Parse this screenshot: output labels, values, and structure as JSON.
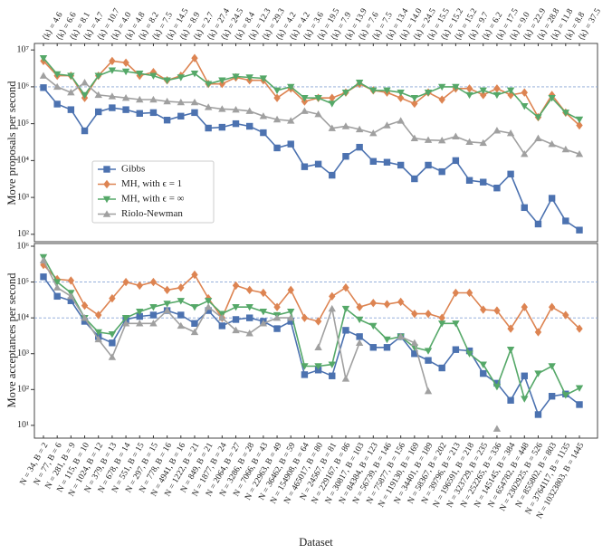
{
  "chart_data": [
    {
      "type": "line",
      "log_y": true,
      "ylabel": "Move proposals per second",
      "categories": [
        "⟨k⟩ = 4.6",
        "⟨k⟩ = 6.6",
        "⟨k⟩ = 8.1",
        "⟨k⟩ = 4.7",
        "⟨k⟩ = 10.7",
        "⟨k⟩ = 4.0",
        "⟨k⟩ = 4.8",
        "⟨k⟩ = 8.2",
        "⟨k⟩ = 7.5",
        "⟨k⟩ = 14.5",
        "⟨k⟩ = 8.9",
        "⟨k⟩ = 2.7",
        "⟨k⟩ = 27.4",
        "⟨k⟩ = 24.5",
        "⟨k⟩ = 8.4",
        "⟨k⟩ = 12.3",
        "⟨k⟩ = 29.3",
        "⟨k⟩ = 4.2",
        "⟨k⟩ = 4.2",
        "⟨k⟩ = 3.6",
        "⟨k⟩ = 19.5",
        "⟨k⟩ = 7.9",
        "⟨k⟩ = 13.9",
        "⟨k⟩ = 7.6",
        "⟨k⟩ = 7.5",
        "⟨k⟩ = 13.4",
        "⟨k⟩ = 14.0",
        "⟨k⟩ = 24.5",
        "⟨k⟩ = 15.5",
        "⟨k⟩ = 15.2",
        "⟨k⟩ = 15.2",
        "⟨k⟩ = 9.7",
        "⟨k⟩ = 6.2",
        "⟨k⟩ = 17.5",
        "⟨k⟩ = 9.0",
        "⟨k⟩ = 22.9",
        "⟨k⟩ = 28.8",
        "⟨k⟩ = 11.8",
        "⟨k⟩ = 8.8",
        "⟨k⟩ = 37.5"
      ],
      "ylim": [
        63,
        15000000
      ],
      "yticks": [
        {
          "value": 100,
          "label": "10²"
        },
        {
          "value": 1000,
          "label": "10³"
        },
        {
          "value": 10000,
          "label": "10⁴"
        },
        {
          "value": 100000,
          "label": "10⁵"
        },
        {
          "value": 1000000,
          "label": "10⁶"
        },
        {
          "value": 10000000,
          "label": "10⁷"
        }
      ],
      "hlines": [
        1000000
      ],
      "hline_color": "#8aa6d6",
      "legend": "center left",
      "series": [
        {
          "name": "Gibbs",
          "color": "#4c72b0",
          "marker": "square",
          "values": [
            950000,
            340000,
            240000,
            64000,
            210000,
            270000,
            240000,
            190000,
            200000,
            125000,
            160000,
            200000,
            76000,
            80000,
            100000,
            85000,
            57000,
            22000,
            28000,
            6800,
            8000,
            4000,
            13000,
            23000,
            9500,
            9000,
            7500,
            3200,
            7500,
            5000,
            10000,
            2900,
            2600,
            1800,
            4300,
            530,
            190,
            950,
            230,
            130
          ]
        },
        {
          "name": "MH, with ϵ = 1",
          "color": "#dd8452",
          "marker": "diamond",
          "values": [
            5000000,
            2000000,
            2000000,
            500000,
            2000000,
            5000000,
            4500000,
            2000000,
            2500000,
            1500000,
            2000000,
            6000000,
            1200000,
            1200000,
            1800000,
            1500000,
            1500000,
            500000,
            900000,
            400000,
            500000,
            500000,
            700000,
            1200000,
            800000,
            700000,
            500000,
            350000,
            700000,
            450000,
            900000,
            900000,
            600000,
            900000,
            600000,
            700000,
            150000,
            600000,
            200000,
            90000
          ]
        },
        {
          "name": "MH, with ϵ = ∞",
          "color": "#55a868",
          "marker": "triangle-down",
          "values": [
            6000000,
            2200000,
            2000000,
            600000,
            2000000,
            2800000,
            2600000,
            2300000,
            2000000,
            1500000,
            1800000,
            2300000,
            1200000,
            1500000,
            1900000,
            1800000,
            1700000,
            800000,
            1000000,
            500000,
            500000,
            350000,
            700000,
            1300000,
            800000,
            800000,
            700000,
            500000,
            700000,
            1000000,
            1000000,
            600000,
            800000,
            600000,
            800000,
            300000,
            150000,
            500000,
            200000,
            130000
          ]
        },
        {
          "name": "Riolo-Newman",
          "color": "#a0a0a0",
          "marker": "triangle-up",
          "values": [
            2000000,
            1000000,
            700000,
            1300000,
            600000,
            550000,
            500000,
            450000,
            450000,
            400000,
            380000,
            380000,
            280000,
            250000,
            240000,
            220000,
            160000,
            130000,
            120000,
            220000,
            180000,
            75000,
            85000,
            70000,
            55000,
            90000,
            120000,
            40000,
            36000,
            35000,
            45000,
            32000,
            30000,
            65000,
            55000,
            15000,
            40000,
            28000,
            20000,
            15000
          ]
        }
      ]
    },
    {
      "type": "line",
      "log_y": true,
      "ylabel": "Move acceptances per second",
      "xlabel": "Dataset",
      "categories": [
        "N = 34, B = 2",
        "N = 77, B = 6",
        "N = 281, B = 9",
        "N = 115, B = 10",
        "N = 1024, B = 12",
        "N = 379, B = 13",
        "N = 678, B = 14",
        "N = 551, B = 15",
        "N = 297, B = 15",
        "N = 778, B = 16",
        "N = 4941, B = 16",
        "N = 1222, B = 21",
        "N = 849, B = 21",
        "N = 1877, B = 24",
        "N = 2064, B = 27",
        "N = 3286, B = 28",
        "N = 7066, B = 43",
        "N = 22963, B = 49",
        "N = 36462, B = 59",
        "N = 154908, B = 64",
        "N = 465017, B = 80",
        "N = 24567, B = 81",
        "N = 229167, B = 86",
        "N = 30817, B = 103",
        "N = 84384, B = 123",
        "N = 56739, B = 146",
        "N = 75877, B = 156",
        "N = 119130, B = 169",
        "N = 34401, B = 189",
        "N = 58367, B = 202",
        "N = 39796, B = 213",
        "N = 196591, B = 218",
        "N = 323729, B = 235",
        "N = 252265, B = 336",
        "N = 145145, B = 384",
        "N = 654782, B = 448",
        "N = 2302925, B = 526",
        "N = 855802, B = 803",
        "N = 3764117, B = 1135",
        "N = 10323803, B = 1445"
      ],
      "ylim": [
        4.4,
        1190000
      ],
      "yticks": [
        {
          "value": 10,
          "label": "10¹"
        },
        {
          "value": 100,
          "label": "10²"
        },
        {
          "value": 1000,
          "label": "10³"
        },
        {
          "value": 10000,
          "label": "10⁴"
        },
        {
          "value": 100000,
          "label": "10⁵"
        },
        {
          "value": 1000000,
          "label": "10⁶"
        }
      ],
      "hlines": [
        100000,
        10000
      ],
      "hline_color": "#8aa6d6",
      "series": [
        {
          "color": "#4c72b0",
          "marker": "square",
          "values": [
            140000,
            40000,
            30000,
            8000,
            3000,
            2000,
            9000,
            11000,
            12000,
            16000,
            12000,
            7000,
            16000,
            6000,
            9000,
            10000,
            8000,
            5000,
            8000,
            260,
            350,
            240,
            4500,
            3000,
            1500,
            1500,
            3000,
            1000,
            650,
            400,
            1300,
            1200,
            280,
            150,
            50,
            240,
            20,
            65,
            75,
            38
          ]
        },
        {
          "color": "#dd8452",
          "marker": "diamond",
          "values": [
            300000,
            120000,
            110000,
            22000,
            12000,
            35000,
            100000,
            80000,
            100000,
            60000,
            70000,
            160000,
            35000,
            10000,
            80000,
            60000,
            50000,
            20000,
            60000,
            10000,
            8000,
            40000,
            70000,
            20000,
            26000,
            24000,
            28000,
            13000,
            13000,
            10000,
            50000,
            50000,
            17000,
            16000,
            5000,
            20000,
            4000,
            20000,
            12000,
            5000
          ]
        },
        {
          "color": "#55a868",
          "marker": "triangle-down",
          "values": [
            500000,
            100000,
            50000,
            10000,
            4000,
            3500,
            10000,
            15000,
            20000,
            25000,
            30000,
            20000,
            30000,
            13000,
            20000,
            20000,
            15000,
            12000,
            15000,
            450,
            450,
            500,
            18000,
            9000,
            6000,
            2500,
            3000,
            1500,
            1200,
            7000,
            7000,
            1000,
            500,
            120,
            1300,
            55,
            280,
            450,
            70,
            110
          ]
        },
        {
          "color": "#a0a0a0",
          "marker": "triangle-up",
          "values": [
            400000,
            70000,
            40000,
            10000,
            2500,
            800,
            7000,
            7000,
            7000,
            16000,
            6000,
            4000,
            20000,
            10000,
            4500,
            3700,
            7000,
            10000,
            10000,
            null,
            1500,
            18000,
            200,
            2000,
            null,
            null,
            3000,
            2000,
            90,
            null,
            null,
            null,
            null,
            8,
            null,
            null,
            null,
            null,
            null,
            null
          ]
        }
      ]
    }
  ]
}
